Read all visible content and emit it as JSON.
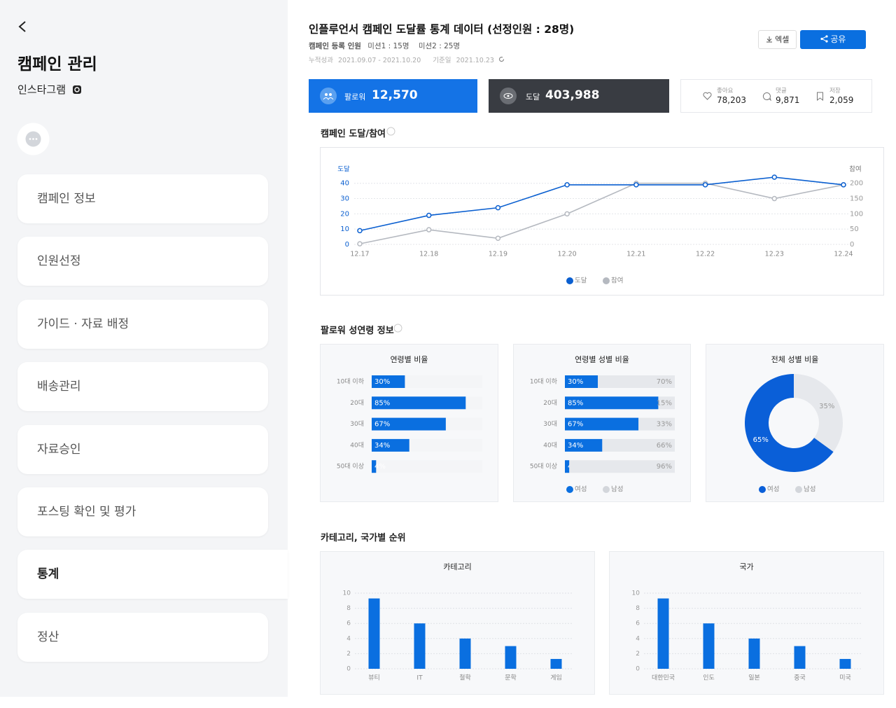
{
  "sidebar": {
    "title": "캠페인 관리",
    "platform": "인스타그램",
    "menu": [
      "캠페인 정보",
      "인원선정",
      "가이드 · 자료 배정",
      "배송관리",
      "자료승인",
      "포스팅 확인 및 평가",
      "통계",
      "정산"
    ],
    "active_index": 6
  },
  "header": {
    "title": "인플루언서 캠페인 도달률 통계 데이터 (선정인원 : 28명)",
    "registered_label": "캠페인 등록 인원",
    "mission1": "미션1 : 15명",
    "mission2": "미션2 : 25명",
    "period_label": "누적성과",
    "period": "2021.09.07 - 2021.10.20",
    "base_date_label": "기준일",
    "base_date": "2021.10.23",
    "excel_button": "엑셀",
    "share_button": "공유"
  },
  "stats": {
    "followers": {
      "label": "팔로워",
      "value": "12,570"
    },
    "reach": {
      "label": "도달",
      "value": "403,988"
    },
    "likes": {
      "label": "좋아요",
      "value": "78,203"
    },
    "comments": {
      "label": "댓글",
      "value": "9,871"
    },
    "saves": {
      "label": "저장",
      "value": "2,059"
    }
  },
  "sections": [
    "캠페인 도달/참여",
    "팔로워 성연령 정보",
    "카테고리, 국가별 순위"
  ],
  "chart_data": [
    {
      "type": "line",
      "y_label": "도달",
      "y2_label": "참여",
      "categories": [
        "12.17",
        "12.18",
        "12.19",
        "12.20",
        "12.21",
        "12.22",
        "12.23",
        "12.24"
      ],
      "series": [
        {
          "name": "도달",
          "color": "#0a5fd0",
          "values": [
            9,
            19,
            24,
            39,
            39,
            39,
            44,
            39
          ]
        },
        {
          "name": "참여",
          "color": "#b5b9c0",
          "axis": "y2",
          "values": [
            2,
            48,
            20,
            100,
            200,
            200,
            150,
            195
          ]
        }
      ],
      "ylim": [
        0,
        44
      ],
      "yticks": [
        0,
        10,
        20,
        30,
        40
      ],
      "y2lim": [
        0,
        220
      ],
      "y2ticks": [
        0,
        50,
        100,
        150,
        200
      ],
      "grid": true,
      "legend": "bottom"
    },
    {
      "type": "hbar",
      "title": "연령별 비율",
      "categories": [
        "10대 이하",
        "20대",
        "30대",
        "40대",
        "50대 이상"
      ],
      "values": [
        30,
        85,
        67,
        34,
        4
      ],
      "value_labels": [
        "30%",
        "85%",
        "67%",
        "34%",
        "4%"
      ],
      "xlim": [
        0,
        100
      ],
      "color": "#0a6fe0",
      "track_color": "#f4f5f7"
    },
    {
      "type": "stacked_hbar",
      "title": "연령별 성별 비율",
      "categories": [
        "10대 이하",
        "20대",
        "30대",
        "40대",
        "50대 이상"
      ],
      "series": [
        {
          "name": "여성",
          "color": "#0a6fe0",
          "values": [
            30,
            85,
            67,
            34,
            4
          ],
          "value_labels": [
            "30%",
            "85%",
            "67%",
            "34%",
            "4%"
          ]
        },
        {
          "name": "남성",
          "color": "#e6e8ec",
          "values": [
            70,
            15,
            33,
            66,
            96
          ],
          "value_labels": [
            "70%",
            "15%",
            "33%",
            "66%",
            "96%"
          ]
        }
      ],
      "xlim": [
        0,
        100
      ],
      "legend": "bottom"
    },
    {
      "type": "donut",
      "title": "전체 성별 비율",
      "categories": [
        "여성",
        "남성"
      ],
      "values": [
        65,
        35
      ],
      "value_labels": [
        "65%",
        "35%"
      ],
      "colors": [
        "#0a5fd8",
        "#e6e8ec"
      ],
      "legend": "bottom"
    },
    {
      "type": "bar",
      "title": "카테고리",
      "categories": [
        "뷰티",
        "IT",
        "철학",
        "문학",
        "게임"
      ],
      "values": [
        9.3,
        6,
        4,
        3,
        1.3
      ],
      "ylim": [
        0,
        10
      ],
      "yticks": [
        0,
        2,
        4,
        6,
        8,
        10
      ],
      "grid": true,
      "color": "#0a6fe0"
    },
    {
      "type": "bar",
      "title": "국가",
      "categories": [
        "대한민국",
        "인도",
        "일본",
        "중국",
        "미국"
      ],
      "values": [
        9.3,
        6,
        4,
        3,
        1.3
      ],
      "ylim": [
        0,
        10
      ],
      "yticks": [
        0,
        2,
        4,
        6,
        8,
        10
      ],
      "grid": true,
      "color": "#0a6fe0"
    }
  ]
}
